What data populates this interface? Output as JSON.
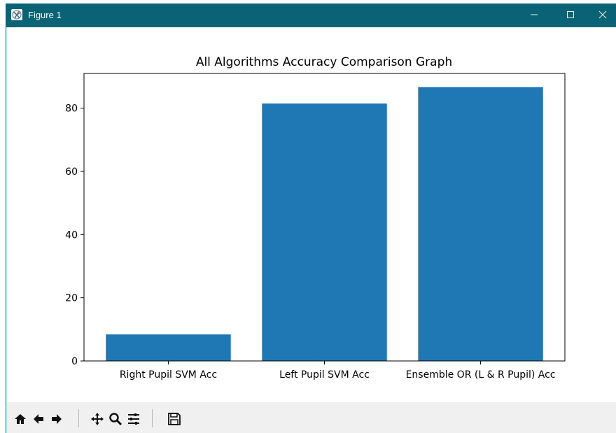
{
  "window": {
    "title": "Figure 1",
    "icon": "matplotlib-figure-icon"
  },
  "window_controls": [
    "minimize-icon",
    "maximize-icon",
    "close-icon"
  ],
  "toolbar": {
    "buttons": [
      "home-icon",
      "back-arrow-icon",
      "forward-arrow-icon",
      "pan-icon",
      "zoom-icon",
      "configure-subplots-icon",
      "save-icon"
    ]
  },
  "colors": {
    "titlebar": "#0a6374",
    "bar": "#1f77b4",
    "toolbar_bg": "#f0f0f0"
  },
  "chart_data": {
    "type": "bar",
    "title": "All Algorithms Accuracy Comparison Graph",
    "xlabel": "",
    "ylabel": "",
    "categories": [
      "Right Pupil SVM Acc",
      "Left Pupil SVM Acc",
      "Ensemble OR (L & R Pupil) Acc"
    ],
    "values": [
      8.4,
      81.5,
      86.7
    ],
    "ylim": [
      0,
      91.0
    ],
    "yticks": [
      0,
      20,
      40,
      60,
      80
    ],
    "grid": false
  }
}
